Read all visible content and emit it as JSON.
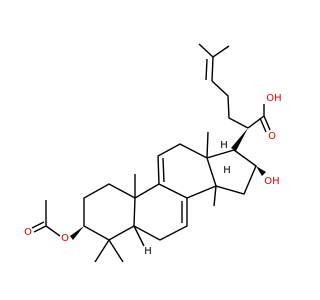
{
  "labels": [
    "OH",
    "O",
    "OH",
    "H",
    "H",
    "H",
    "O",
    "O"
  ]
}
